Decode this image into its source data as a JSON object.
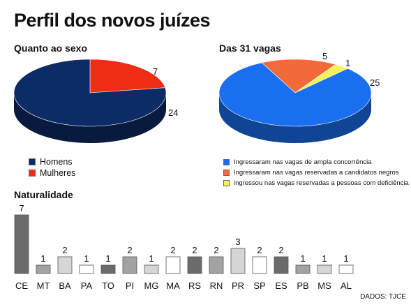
{
  "title": "Perfil dos novos juízes",
  "source": "DADOS: TJCE",
  "sexo": {
    "title": "Quanto ao sexo",
    "legend": [
      {
        "label": "Homens",
        "color": "#0d2b66"
      },
      {
        "label": "Mulheres",
        "color": "#ee2d14"
      }
    ]
  },
  "vagas": {
    "title": "Das 31 vagas",
    "legend": [
      {
        "label": "Ingressaram nas vagas de ampla concorrência",
        "color": "#1a6ff0"
      },
      {
        "label": "Ingressaram nas vagas reservadas a candidatos negros",
        "color": "#f06a3a"
      },
      {
        "label": "ingressou nas vagas reservadas a pessoas com deficiência",
        "color": "#f4f25a"
      }
    ]
  },
  "naturalidade": {
    "title": "Naturalidade"
  },
  "chart_data": [
    {
      "type": "pie",
      "title": "Quanto ao sexo",
      "categories": [
        "Homens",
        "Mulheres"
      ],
      "values": [
        24,
        7
      ],
      "colors": [
        "#0d2b66",
        "#ee2d14"
      ],
      "legend": "bottom-left"
    },
    {
      "type": "pie",
      "title": "Das 31 vagas",
      "categories": [
        "Ingressaram nas vagas de ampla concorrência",
        "Ingressaram nas vagas reservadas a candidatos negros",
        "ingressou nas vagas reservadas a pessoas com deficiência"
      ],
      "values": [
        25,
        5,
        1
      ],
      "colors": [
        "#1a6ff0",
        "#f06a3a",
        "#f4f25a"
      ],
      "legend": "bottom"
    },
    {
      "type": "bar",
      "title": "Naturalidade",
      "categories": [
        "CE",
        "MT",
        "BA",
        "PA",
        "TO",
        "PI",
        "MG",
        "MA",
        "RS",
        "RN",
        "PR",
        "SP",
        "ES",
        "PB",
        "MS",
        "AL"
      ],
      "values": [
        7,
        1,
        2,
        1,
        1,
        2,
        1,
        2,
        2,
        2,
        3,
        2,
        2,
        1,
        1,
        1
      ],
      "colors": [
        "#6b6b6b",
        "#a3a3a3",
        "#d6d6d6",
        "#ffffff",
        "#6b6b6b",
        "#a3a3a3",
        "#d6d6d6",
        "#ffffff",
        "#6b6b6b",
        "#a3a3a3",
        "#d6d6d6",
        "#ffffff",
        "#6b6b6b",
        "#a3a3a3",
        "#d6d6d6",
        "#ffffff"
      ],
      "grid": false
    }
  ]
}
